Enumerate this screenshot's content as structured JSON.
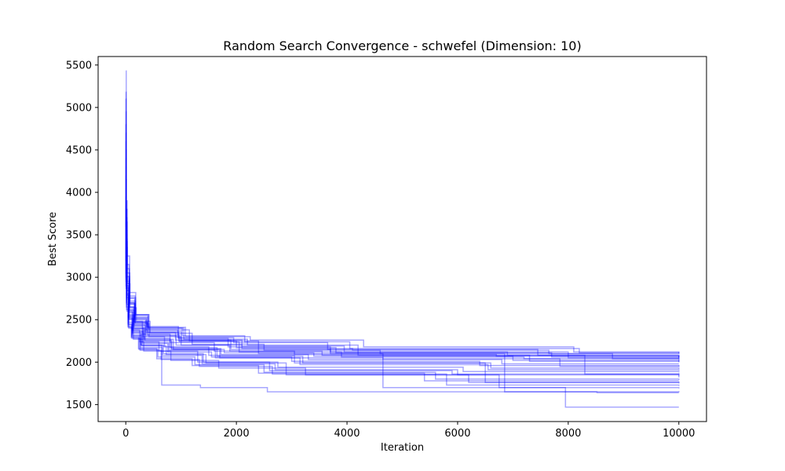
{
  "chart_data": {
    "type": "line",
    "title": "Random Search Convergence - schwefel (Dimension: 10)",
    "xlabel": "Iteration",
    "ylabel": "Best Score",
    "xlim": [
      -500,
      10500
    ],
    "ylim": [
      1300,
      5600
    ],
    "xticks": [
      0,
      2000,
      4000,
      6000,
      8000,
      10000
    ],
    "yticks": [
      1500,
      2000,
      2500,
      3000,
      3500,
      4000,
      4500,
      5000,
      5500
    ],
    "grid": false,
    "line_color": "#0000ff",
    "line_alpha": 0.35,
    "series": [
      {
        "x": [
          0,
          8,
          25,
          70,
          180,
          420,
          1150,
          2400,
          4650,
          7850,
          10000
        ],
        "y": [
          5430,
          3900,
          3250,
          2820,
          2560,
          2380,
          2250,
          2100,
          2040,
          1950,
          1960
        ]
      },
      {
        "x": [
          0,
          6,
          20,
          60,
          160,
          380,
          950,
          1850,
          3700,
          6900,
          10000
        ],
        "y": [
          5180,
          3700,
          3150,
          2750,
          2520,
          2420,
          2280,
          2180,
          2120,
          2080,
          2050
        ]
      },
      {
        "x": [
          0,
          5,
          18,
          55,
          140,
          300,
          800,
          1600,
          3050,
          6700,
          10000
        ],
        "y": [
          5100,
          3500,
          2950,
          2650,
          2480,
          2330,
          2230,
          2130,
          2090,
          2070,
          2040
        ]
      },
      {
        "x": [
          0,
          7,
          22,
          65,
          170,
          420,
          1000,
          2100,
          4100,
          7650,
          10000
        ],
        "y": [
          4950,
          3800,
          3100,
          2780,
          2450,
          2300,
          2200,
          2160,
          2140,
          2100,
          2120
        ]
      },
      {
        "x": [
          0,
          4,
          15,
          48,
          120,
          280,
          650,
          1350,
          2560,
          8520,
          10000
        ],
        "y": [
          4800,
          3600,
          2900,
          2600,
          2350,
          2200,
          1730,
          1700,
          1650,
          1640,
          1640
        ]
      },
      {
        "x": [
          0,
          6,
          19,
          58,
          150,
          350,
          820,
          1700,
          4650,
          7950,
          10000
        ],
        "y": [
          4700,
          3400,
          2850,
          2550,
          2400,
          2250,
          2150,
          2050,
          1700,
          1470,
          1470
        ]
      },
      {
        "x": [
          0,
          5,
          21,
          62,
          155,
          360,
          900,
          1900,
          3700,
          6850,
          10000
        ],
        "y": [
          4600,
          3550,
          3000,
          2700,
          2500,
          2350,
          2260,
          2150,
          2100,
          1650,
          1660
        ]
      },
      {
        "x": [
          0,
          8,
          24,
          72,
          175,
          400,
          1050,
          2200,
          4200,
          8300,
          10000
        ],
        "y": [
          4500,
          3650,
          3050,
          2720,
          2550,
          2400,
          2270,
          2200,
          2080,
          1860,
          1870
        ]
      },
      {
        "x": [
          0,
          6,
          18,
          52,
          130,
          310,
          700,
          1500,
          3050,
          6500,
          10000
        ],
        "y": [
          4400,
          3300,
          2880,
          2580,
          2420,
          2300,
          2180,
          2080,
          1990,
          1760,
          1770
        ]
      },
      {
        "x": [
          0,
          7,
          23,
          68,
          165,
          390,
          970,
          2050,
          3900,
          7200,
          10000
        ],
        "y": [
          4300,
          3450,
          2980,
          2680,
          2470,
          2320,
          2240,
          2120,
          2060,
          2040,
          2000
        ]
      },
      {
        "x": [
          0,
          5,
          17,
          50,
          125,
          290,
          730,
          1450,
          2900,
          6200,
          10000
        ],
        "y": [
          4200,
          3250,
          2800,
          2500,
          2320,
          2190,
          2090,
          1990,
          1850,
          1760,
          1750
        ]
      },
      {
        "x": [
          0,
          9,
          26,
          75,
          190,
          440,
          1200,
          2500,
          4600,
          8800,
          10000
        ],
        "y": [
          4150,
          3350,
          2920,
          2640,
          2480,
          2340,
          2210,
          2140,
          2100,
          2040,
          2030
        ]
      },
      {
        "x": [
          0,
          6,
          20,
          57,
          145,
          340,
          860,
          1780,
          3400,
          7000,
          10000
        ],
        "y": [
          4050,
          3280,
          2870,
          2620,
          2440,
          2270,
          2150,
          2110,
          2070,
          2020,
          2010
        ]
      },
      {
        "x": [
          0,
          4,
          14,
          45,
          110,
          250,
          600,
          1300,
          2600,
          5900,
          10000
        ],
        "y": [
          3950,
          3200,
          2760,
          2530,
          2380,
          2240,
          2130,
          2000,
          1900,
          1860,
          1820
        ]
      },
      {
        "x": [
          0,
          7,
          22,
          63,
          160,
          370,
          940,
          1950,
          3650,
          7450,
          10000
        ],
        "y": [
          3900,
          3380,
          2960,
          2700,
          2510,
          2380,
          2290,
          2230,
          2150,
          2080,
          2060
        ]
      },
      {
        "x": [
          0,
          5,
          16,
          49,
          118,
          270,
          680,
          1400,
          2750,
          6100,
          10000
        ],
        "y": [
          3850,
          3150,
          2720,
          2470,
          2340,
          2200,
          2100,
          2000,
          1940,
          1890,
          1880
        ]
      },
      {
        "x": [
          0,
          8,
          25,
          70,
          178,
          410,
          1080,
          2250,
          4300,
          8100,
          10000
        ],
        "y": [
          3800,
          3420,
          3010,
          2760,
          2560,
          2410,
          2300,
          2260,
          2180,
          2120,
          2110
        ]
      },
      {
        "x": [
          0,
          6,
          19,
          56,
          140,
          330,
          830,
          1720,
          3300,
          6800,
          10000
        ],
        "y": [
          3700,
          3180,
          2840,
          2560,
          2400,
          2260,
          2160,
          2090,
          2030,
          1980,
          1980
        ]
      },
      {
        "x": [
          0,
          5,
          17,
          51,
          128,
          300,
          760,
          1550,
          3000,
          6400,
          10000
        ],
        "y": [
          3650,
          3120,
          2790,
          2540,
          2370,
          2220,
          2120,
          2060,
          2010,
          1960,
          1950
        ]
      },
      {
        "x": [
          0,
          7,
          21,
          64,
          162,
          380,
          960,
          2000,
          3800,
          7700,
          10000
        ],
        "y": [
          3600,
          3300,
          2900,
          2650,
          2460,
          2350,
          2250,
          2170,
          2110,
          2060,
          2070
        ]
      },
      {
        "x": [
          0,
          4,
          13,
          42,
          105,
          240,
          580,
          1250,
          2500,
          5600,
          10000
        ],
        "y": [
          3550,
          3050,
          2700,
          2450,
          2300,
          2150,
          2060,
          1970,
          1880,
          1800,
          1790
        ]
      },
      {
        "x": [
          0,
          6,
          18,
          54,
          135,
          320,
          800,
          1650,
          3200,
          6600,
          10000
        ],
        "y": [
          3500,
          3100,
          2760,
          2510,
          2390,
          2280,
          2170,
          2070,
          1990,
          1930,
          1920
        ]
      },
      {
        "x": [
          0,
          8,
          24,
          69,
          172,
          400,
          1020,
          2150,
          4050,
          8200,
          10000
        ],
        "y": [
          3450,
          3230,
          2930,
          2690,
          2530,
          2400,
          2310,
          2240,
          2160,
          2110,
          2100
        ]
      },
      {
        "x": [
          0,
          5,
          16,
          47,
          115,
          265,
          660,
          1380,
          2700,
          6000,
          10000
        ],
        "y": [
          3400,
          3000,
          2680,
          2440,
          2310,
          2170,
          2080,
          1980,
          1910,
          1850,
          1840
        ]
      },
      {
        "x": [
          0,
          7,
          20,
          61,
          152,
          360,
          910,
          1880,
          3550,
          7300,
          10000
        ],
        "y": [
          3350,
          3080,
          2780,
          2590,
          2430,
          2310,
          2200,
          2130,
          2080,
          2010,
          2000
        ]
      },
      {
        "x": [
          0,
          6,
          18,
          53,
          132,
          310,
          780,
          1620,
          3150,
          6550,
          10000
        ],
        "y": [
          3300,
          2980,
          2740,
          2520,
          2360,
          2230,
          2140,
          2050,
          1970,
          1910,
          1900
        ]
      },
      {
        "x": [
          0,
          4,
          12,
          40,
          100,
          230,
          560,
          1200,
          2400,
          5400,
          10000
        ],
        "y": [
          3250,
          2950,
          2650,
          2420,
          2290,
          2160,
          2040,
          1960,
          1870,
          1780,
          1780
        ]
      },
      {
        "x": [
          0,
          8,
          23,
          67,
          168,
          395,
          1000,
          2100,
          3950,
          8000,
          10000
        ],
        "y": [
          3200,
          3020,
          2810,
          2610,
          2470,
          2360,
          2260,
          2190,
          2120,
          2050,
          2050
        ]
      },
      {
        "x": [
          0,
          5,
          15,
          46,
          112,
          260,
          640,
          1330,
          2650,
          5800,
          10000
        ],
        "y": [
          3150,
          2900,
          2620,
          2410,
          2280,
          2140,
          2030,
          1950,
          1860,
          1730,
          1720
        ]
      },
      {
        "x": [
          0,
          6,
          19,
          55,
          138,
          325,
          815,
          1680,
          3250,
          6750,
          10000
        ],
        "y": [
          3100,
          2870,
          2600,
          2400,
          2270,
          2130,
          2020,
          1930,
          1850,
          1700,
          1690
        ]
      }
    ]
  }
}
